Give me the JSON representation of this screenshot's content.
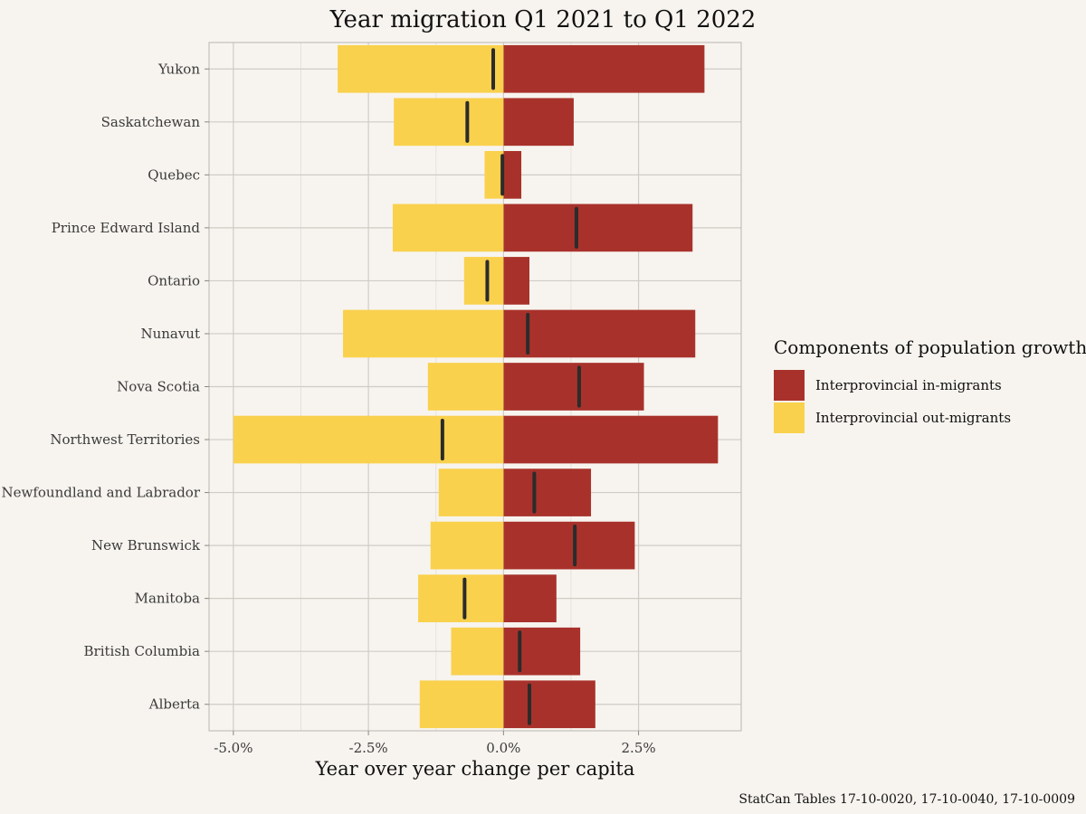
{
  "chart_data": {
    "type": "bar",
    "orientation": "horizontal",
    "stacking": "diverging",
    "title": "Year migration Q1 2021 to Q1 2022",
    "xlabel": "Year over year change per capita",
    "ylabel": "",
    "xlim": [
      -5.45,
      4.4
    ],
    "x_ticks": [
      -5.0,
      -2.5,
      0.0,
      2.5
    ],
    "x_tick_labels": [
      "-5.0%",
      "-2.5%",
      "0.0%",
      "2.5%"
    ],
    "grid": true,
    "legend_placement": "right",
    "legend_title": "Components of population growth",
    "categories": [
      "Alberta",
      "British Columbia",
      "Manitoba",
      "New Brunswick",
      "Newfoundland and Labrador",
      "Northwest Territories",
      "Nova Scotia",
      "Nunavut",
      "Ontario",
      "Prince Edward Island",
      "Quebec",
      "Saskatchewan",
      "Yukon"
    ],
    "series": [
      {
        "name": "Interprovincial in-migrants",
        "color": "#a8322b",
        "values": [
          1.7,
          1.42,
          0.98,
          2.43,
          1.62,
          3.97,
          2.6,
          3.55,
          0.48,
          3.5,
          0.33,
          1.3,
          3.72
        ]
      },
      {
        "name": "Interprovincial out-migrants",
        "color": "#f9d14d",
        "values": [
          -1.55,
          -0.97,
          -1.58,
          -1.35,
          -1.2,
          -5.0,
          -1.4,
          -2.97,
          -0.73,
          -2.05,
          -0.35,
          -2.03,
          -3.07
        ]
      }
    ],
    "net_marker_name": "Net",
    "net_marker_color": "#2b2b2b",
    "net": [
      0.48,
      0.3,
      -0.72,
      1.32,
      0.57,
      -1.13,
      1.4,
      0.45,
      -0.3,
      1.35,
      -0.02,
      -0.67,
      -0.19
    ]
  },
  "caption": "StatCan Tables 17-10-0020, 17-10-0040, 17-10-0009"
}
